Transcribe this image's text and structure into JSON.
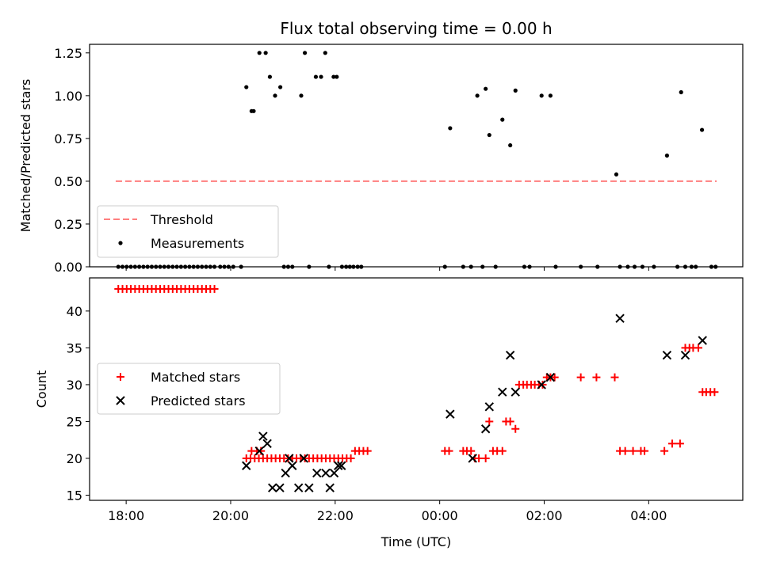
{
  "colors": {
    "threshold": "#ff7f7f",
    "measurements": "#000000",
    "matched": "#ff0000",
    "predicted": "#000000"
  },
  "chart_data": [
    {
      "type": "scatter",
      "title": "Flux total observing time = 0.00 h",
      "xlabel": "",
      "ylabel": "Matched/Predicted stars",
      "ylim": [
        0,
        1.3
      ],
      "yticks": [
        0.0,
        0.25,
        0.5,
        0.75,
        1.0,
        1.25
      ],
      "ytick_labels": [
        "0.00",
        "0.25",
        "0.50",
        "0.75",
        "1.00",
        "1.25"
      ],
      "grid": false,
      "legend": "lower-left",
      "series": [
        {
          "name": "Threshold",
          "style": "dashed-line",
          "x": [
            -6.2,
            5.3
          ],
          "y": [
            0.5,
            0.5
          ]
        },
        {
          "name": "Measurements",
          "style": "dot",
          "x": [
            -6.15,
            -6.07,
            -5.99,
            -5.91,
            -5.83,
            -5.75,
            -5.67,
            -5.59,
            -5.51,
            -5.43,
            -5.35,
            -5.27,
            -5.19,
            -5.11,
            -5.03,
            -4.95,
            -4.87,
            -4.79,
            -4.71,
            -4.63,
            -4.55,
            -4.47,
            -4.39,
            -4.31,
            -3.7,
            -4.2,
            -4.12,
            -4.04,
            -3.95,
            -3.8,
            -3.6,
            -3.56,
            -3.45,
            -3.33,
            -3.25,
            -3.15,
            -3.05,
            -2.98,
            -2.9,
            -2.82,
            -2.65,
            -2.58,
            -2.5,
            -2.37,
            -2.27,
            -2.19,
            -2.12,
            -2.03,
            -1.97,
            -1.87,
            -1.79,
            -1.72,
            -1.65,
            -1.57,
            -1.5,
            0.1,
            0.2,
            0.45,
            0.6,
            0.72,
            0.82,
            0.88,
            0.95,
            1.07,
            1.2,
            1.35,
            1.45,
            1.62,
            1.72,
            1.95,
            2.12,
            2.22,
            2.7,
            3.02,
            3.38,
            3.45,
            3.6,
            3.73,
            3.88,
            4.1,
            4.35,
            4.55,
            4.62,
            4.7,
            4.82,
            4.9,
            5.02,
            5.2,
            5.28
          ],
          "y": [
            0,
            0,
            0,
            0,
            0,
            0,
            0,
            0,
            0,
            0,
            0,
            0,
            0,
            0,
            0,
            0,
            0,
            0,
            0,
            0,
            0,
            0,
            0,
            0,
            1.05,
            0,
            0,
            0,
            0,
            0,
            0.91,
            0.91,
            1.25,
            1.25,
            1.11,
            1.0,
            1.05,
            0,
            0,
            0,
            1.0,
            1.25,
            0,
            1.11,
            1.11,
            1.25,
            0,
            1.11,
            1.11,
            0,
            0,
            0,
            0,
            0,
            0,
            0,
            0.81,
            0,
            0,
            1.0,
            0,
            1.04,
            0.77,
            0,
            0.86,
            0.71,
            1.03,
            0,
            0,
            1.0,
            1.0,
            0,
            0,
            0,
            0.54,
            0,
            0,
            0,
            0,
            0,
            0.65,
            0,
            1.02,
            0,
            0,
            0,
            0.8,
            0,
            0
          ]
        }
      ]
    },
    {
      "type": "scatter",
      "xlabel": "Time (UTC)",
      "ylabel": "Count",
      "ylim": [
        14.3,
        44.5
      ],
      "yticks": [
        15,
        20,
        25,
        30,
        35,
        40
      ],
      "ytick_labels": [
        "15",
        "20",
        "25",
        "30",
        "35",
        "40"
      ],
      "xticks": [
        -6,
        -4,
        -2,
        0,
        2,
        4
      ],
      "xtick_labels": [
        "18:00",
        "20:00",
        "22:00",
        "00:00",
        "02:00",
        "04:00"
      ],
      "xlim": [
        -6.7,
        5.8
      ],
      "grid": false,
      "legend": "center-left",
      "series": [
        {
          "name": "Matched stars",
          "marker": "plus",
          "x": [
            -6.15,
            -6.07,
            -5.99,
            -5.91,
            -5.83,
            -5.75,
            -5.67,
            -5.59,
            -5.51,
            -5.43,
            -5.35,
            -5.27,
            -5.19,
            -5.11,
            -5.03,
            -4.95,
            -4.87,
            -4.79,
            -4.71,
            -4.63,
            -4.55,
            -4.47,
            -4.39,
            -4.31,
            -3.7,
            -3.62,
            -3.54,
            -3.46,
            -3.38,
            -3.3,
            -3.22,
            -3.14,
            -3.06,
            -2.98,
            -2.9,
            -2.82,
            -2.74,
            -2.66,
            -2.58,
            -2.5,
            -2.42,
            -2.34,
            -2.26,
            -2.18,
            -2.1,
            -2.02,
            -1.94,
            -1.86,
            -1.78,
            -1.7,
            -1.62,
            -1.54,
            -1.46,
            -1.38,
            -3.6,
            -3.5,
            -3.42,
            0.1,
            0.18,
            0.45,
            0.52,
            0.6,
            0.67,
            0.75,
            0.88,
            0.95,
            1.02,
            1.1,
            1.2,
            1.27,
            1.35,
            1.45,
            1.52,
            1.6,
            1.67,
            1.75,
            1.82,
            1.9,
            1.97,
            2.05,
            2.12,
            2.2,
            2.7,
            3.0,
            3.35,
            3.45,
            3.55,
            3.7,
            3.85,
            3.92,
            4.3,
            4.45,
            4.6,
            4.7,
            4.78,
            4.85,
            4.95,
            5.03,
            5.1,
            5.18,
            5.26
          ],
          "y": [
            43,
            43,
            43,
            43,
            43,
            43,
            43,
            43,
            43,
            43,
            43,
            43,
            43,
            43,
            43,
            43,
            43,
            43,
            43,
            43,
            43,
            43,
            43,
            43,
            20,
            20,
            20,
            20,
            20,
            20,
            20,
            20,
            20,
            20,
            20,
            20,
            20,
            20,
            20,
            20,
            20,
            20,
            20,
            20,
            20,
            20,
            20,
            20,
            20,
            20,
            21,
            21,
            21,
            21,
            21,
            21,
            21,
            21,
            21,
            21,
            21,
            21,
            20,
            20,
            20,
            25,
            21,
            21,
            21,
            25,
            25,
            24,
            30,
            30,
            30,
            30,
            30,
            30,
            30,
            31,
            31,
            31,
            31,
            31,
            31,
            21,
            21,
            21,
            21,
            21,
            21,
            22,
            22,
            35,
            35,
            35,
            35,
            29,
            29,
            29,
            29
          ],
          "x_": []
        },
        {
          "name": "Predicted stars",
          "marker": "x",
          "x": [
            -3.7,
            -3.45,
            -3.38,
            -3.3,
            -3.2,
            -3.06,
            -2.95,
            -2.88,
            -2.82,
            -2.7,
            -2.6,
            -2.5,
            -2.35,
            -2.18,
            -2.1,
            -2.02,
            -1.94,
            -1.88,
            0.2,
            0.63,
            0.88,
            0.95,
            1.2,
            1.35,
            1.45,
            1.95,
            2.12,
            3.45,
            4.35,
            4.7,
            5.03
          ],
          "y": [
            19,
            21,
            23,
            22,
            16,
            16,
            18,
            20,
            19,
            16,
            20,
            16,
            18,
            18,
            16,
            18,
            19,
            19,
            26,
            20,
            24,
            27,
            29,
            34,
            29,
            30,
            31,
            39,
            34,
            34,
            36
          ]
        }
      ]
    }
  ]
}
